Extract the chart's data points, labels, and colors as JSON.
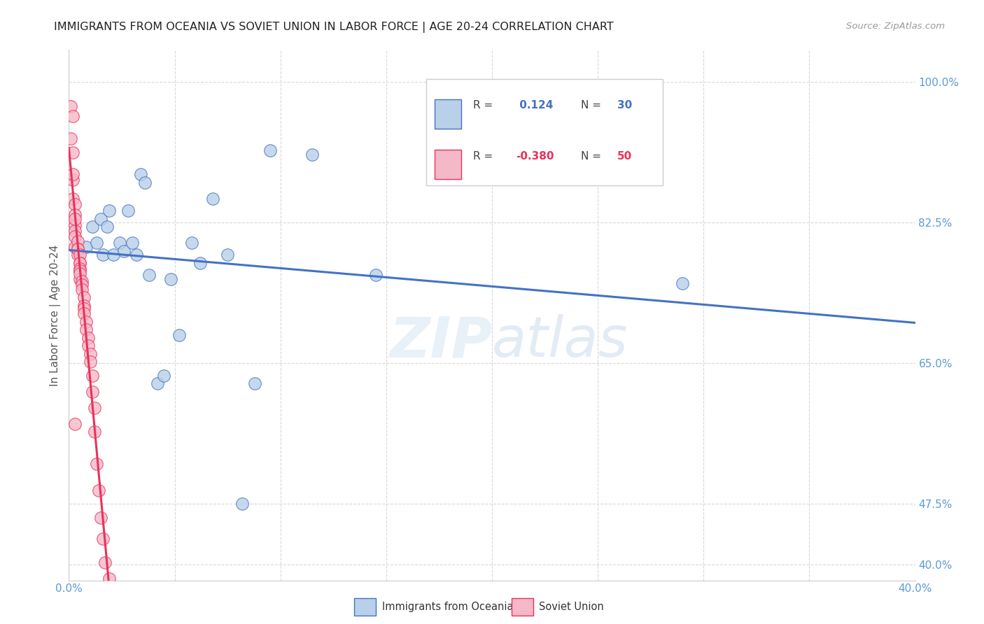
{
  "title": "IMMIGRANTS FROM OCEANIA VS SOVIET UNION IN LABOR FORCE | AGE 20-24 CORRELATION CHART",
  "source": "Source: ZipAtlas.com",
  "ylabel": "In Labor Force | Age 20-24",
  "xlim": [
    0.0,
    0.4
  ],
  "ylim": [
    0.38,
    1.04
  ],
  "oceania_R": 0.124,
  "oceania_N": 30,
  "soviet_R": -0.38,
  "soviet_N": 50,
  "oceania_color": "#b8d0e8",
  "soviet_color": "#f5b8c8",
  "trend_oceania_color": "#4472c4",
  "trend_soviet_color": "#e8325a",
  "background_color": "#ffffff",
  "grid_color": "#d8d8d8",
  "title_color": "#222222",
  "right_tick_color": "#5b9bd5",
  "axis_tick_color": "#5b9bd5",
  "legend_label_oceania": "Immigrants from Oceania",
  "legend_label_soviet": "Soviet Union",
  "watermark": "ZIPatlas",
  "oceania_x": [
    0.008,
    0.011,
    0.013,
    0.015,
    0.016,
    0.018,
    0.019,
    0.021,
    0.024,
    0.026,
    0.028,
    0.03,
    0.032,
    0.034,
    0.036,
    0.038,
    0.042,
    0.045,
    0.048,
    0.052,
    0.058,
    0.062,
    0.068,
    0.075,
    0.082,
    0.088,
    0.095,
    0.115,
    0.145,
    0.29
  ],
  "oceania_y": [
    0.795,
    0.82,
    0.8,
    0.83,
    0.785,
    0.82,
    0.84,
    0.785,
    0.8,
    0.79,
    0.84,
    0.8,
    0.785,
    0.885,
    0.875,
    0.76,
    0.625,
    0.635,
    0.755,
    0.685,
    0.8,
    0.775,
    0.855,
    0.785,
    0.475,
    0.625,
    0.915,
    0.91,
    0.76,
    0.75
  ],
  "soviet_x": [
    0.001,
    0.001,
    0.002,
    0.002,
    0.002,
    0.002,
    0.002,
    0.003,
    0.003,
    0.003,
    0.003,
    0.003,
    0.003,
    0.003,
    0.004,
    0.004,
    0.004,
    0.004,
    0.005,
    0.005,
    0.005,
    0.005,
    0.005,
    0.005,
    0.005,
    0.006,
    0.006,
    0.006,
    0.007,
    0.007,
    0.007,
    0.007,
    0.008,
    0.008,
    0.009,
    0.009,
    0.01,
    0.01,
    0.011,
    0.011,
    0.012,
    0.012,
    0.013,
    0.014,
    0.015,
    0.016,
    0.017,
    0.019,
    0.021,
    0.003
  ],
  "soviet_y": [
    0.97,
    0.93,
    0.958,
    0.912,
    0.878,
    0.885,
    0.855,
    0.848,
    0.835,
    0.822,
    0.83,
    0.815,
    0.808,
    0.795,
    0.802,
    0.792,
    0.785,
    0.792,
    0.785,
    0.775,
    0.775,
    0.768,
    0.765,
    0.755,
    0.762,
    0.752,
    0.748,
    0.742,
    0.732,
    0.722,
    0.718,
    0.712,
    0.702,
    0.692,
    0.682,
    0.672,
    0.662,
    0.652,
    0.635,
    0.615,
    0.595,
    0.565,
    0.525,
    0.492,
    0.458,
    0.432,
    0.402,
    0.382,
    0.358,
    0.575
  ],
  "y_ticks_right": [
    0.4,
    0.475,
    0.65,
    0.825,
    1.0
  ],
  "y_tick_labels_right": [
    "40.0%",
    "47.5%",
    "65.0%",
    "82.5%",
    "100.0%"
  ],
  "x_ticks": [
    0.0,
    0.05,
    0.1,
    0.15,
    0.2,
    0.25,
    0.3,
    0.35,
    0.4
  ],
  "x_tick_labels": [
    "0.0%",
    "",
    "",
    "",
    "",
    "",
    "",
    "",
    "40.0%"
  ]
}
